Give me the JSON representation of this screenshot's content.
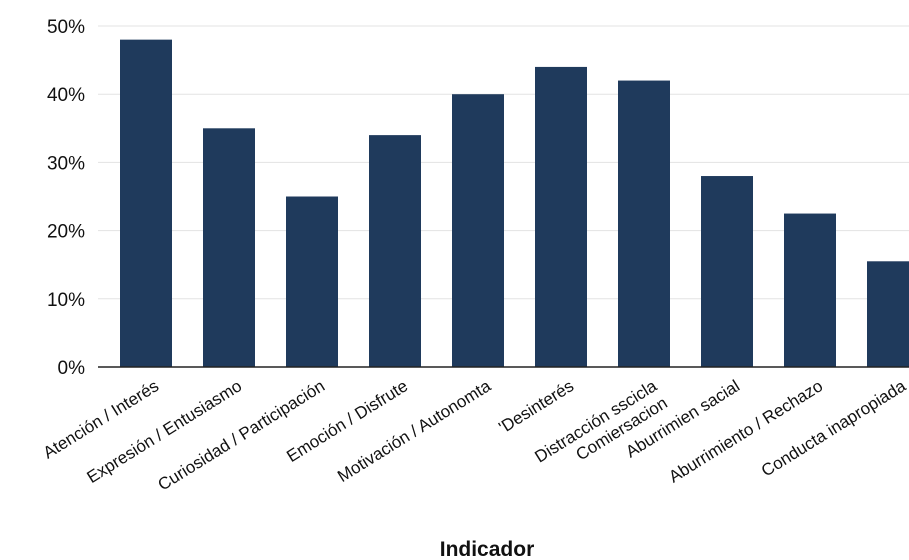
{
  "chart_data": {
    "type": "bar",
    "title": "",
    "xlabel": "Indicador",
    "ylabel": "",
    "ylim": [
      0,
      50
    ],
    "y_ticks": [
      "0%",
      "10%",
      "20%",
      "30%",
      "40%",
      "50%"
    ],
    "grid": true,
    "bar_color": "#1f3a5c",
    "categories": [
      "Atención / Interés",
      "Expresión / Entusiasmo",
      "Curiosidad / Participación",
      "Emoción / Disfrute",
      "Motivación / Autonomta",
      "'Desinterés",
      "Distracción sscicla\nComiersacion",
      "Aburrimien sacial",
      "Aburrimiento / Rechazo",
      "Conducta inapropiada"
    ],
    "values": [
      48,
      35,
      25,
      34,
      40,
      44,
      42,
      28,
      22.5,
      15.5
    ]
  }
}
